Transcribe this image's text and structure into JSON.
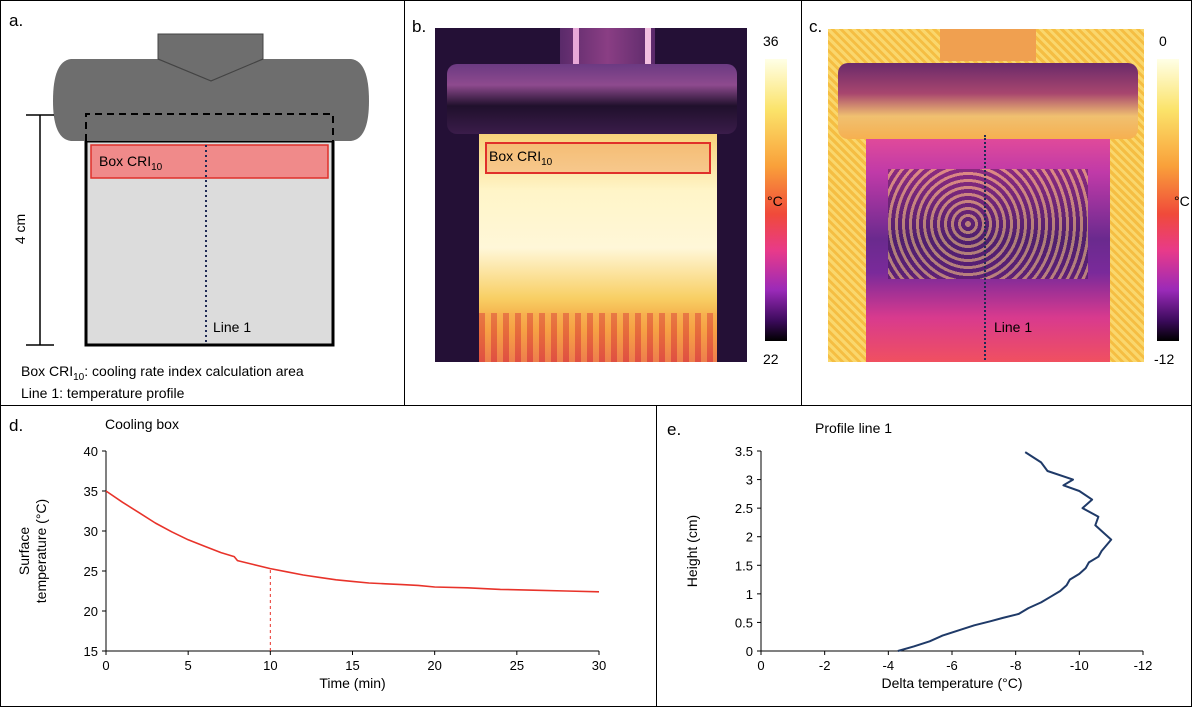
{
  "panels": {
    "a": {
      "label": "a.",
      "box_label": "Box CRI",
      "box_sub": "10",
      "line_label": "Line 1",
      "scale_label": "4 cm",
      "legend_1_prefix": "Box CRI",
      "legend_1_sub": "10",
      "legend_1_suffix": ": cooling rate index calculation area",
      "legend_2": "Line 1: temperature profile"
    },
    "b": {
      "label": "b.",
      "box_label": "Box CRI",
      "box_sub": "10",
      "colorbar_max": "36",
      "colorbar_min": "22",
      "colorbar_unit": "°C"
    },
    "c": {
      "label": "c.",
      "line_label": "Line 1",
      "colorbar_max": "0",
      "colorbar_min": "-12",
      "colorbar_unit": "°C"
    },
    "d": {
      "label": "d."
    },
    "e": {
      "label": "e."
    }
  },
  "colors": {
    "cooling_curve": "#e8332a",
    "profile_curve": "#1f3a68",
    "mold_gray": "#6e6e6e",
    "box_red": "#f08a8a"
  },
  "chart_data": [
    {
      "id": "cooling-box",
      "type": "line",
      "title": "Cooling box",
      "xlabel": "Time (min)",
      "ylabel": "Surface temperature (°C)",
      "ylabel_lines": [
        "Surface",
        "temperature  (°C)"
      ],
      "xlim": [
        0,
        30
      ],
      "ylim": [
        15,
        40
      ],
      "xticks": [
        0,
        5,
        10,
        15,
        20,
        25,
        30
      ],
      "yticks": [
        15,
        20,
        25,
        30,
        35,
        40
      ],
      "grid": false,
      "series": [
        {
          "x": [
            0,
            1,
            2,
            3,
            4,
            5,
            6,
            7,
            7.8,
            8,
            9,
            10,
            11,
            12,
            13,
            14,
            15,
            16,
            17,
            18,
            19,
            20,
            22,
            24,
            26,
            28,
            30
          ],
          "y": [
            35,
            33.6,
            32.3,
            31.0,
            29.9,
            28.9,
            28.1,
            27.3,
            26.8,
            26.3,
            25.8,
            25.3,
            24.9,
            24.5,
            24.2,
            23.9,
            23.7,
            23.5,
            23.4,
            23.3,
            23.2,
            23.0,
            22.9,
            22.7,
            22.6,
            22.5,
            22.4
          ]
        }
      ],
      "annotations": [
        {
          "type": "vline",
          "x": 10,
          "y_from": 15,
          "y_to": 25.3,
          "style": "dashed"
        }
      ]
    },
    {
      "id": "profile-line-1",
      "type": "line",
      "title": "Profile line 1",
      "xlabel": "Delta temperature (°C)",
      "ylabel": "Height (cm)",
      "xlim": [
        0,
        -12
      ],
      "ylim": [
        0,
        3.5
      ],
      "xticks": [
        0,
        -2,
        -4,
        -6,
        -8,
        -10,
        -12
      ],
      "yticks": [
        0,
        0.5,
        1,
        1.5,
        2,
        2.5,
        3,
        3.5
      ],
      "grid": false,
      "series": [
        {
          "x": [
            -4.3,
            -4.8,
            -5.3,
            -5.7,
            -6.2,
            -6.7,
            -7.2,
            -7.6,
            -8.1,
            -8.4,
            -8.8,
            -9.1,
            -9.4,
            -9.6,
            -9.7,
            -10.0,
            -10.2,
            -10.3,
            -10.6,
            -10.7,
            -11.0,
            -10.8,
            -10.5,
            -10.6,
            -10.1,
            -10.4,
            -10.0,
            -9.5,
            -9.8,
            -9.0,
            -8.8,
            -8.3
          ],
          "y": [
            0,
            0.08,
            0.17,
            0.27,
            0.36,
            0.45,
            0.52,
            0.58,
            0.65,
            0.75,
            0.85,
            0.95,
            1.05,
            1.15,
            1.25,
            1.35,
            1.45,
            1.55,
            1.65,
            1.75,
            1.95,
            2.05,
            2.2,
            2.35,
            2.5,
            2.65,
            2.8,
            2.9,
            3.0,
            3.15,
            3.3,
            3.48
          ]
        }
      ]
    }
  ]
}
